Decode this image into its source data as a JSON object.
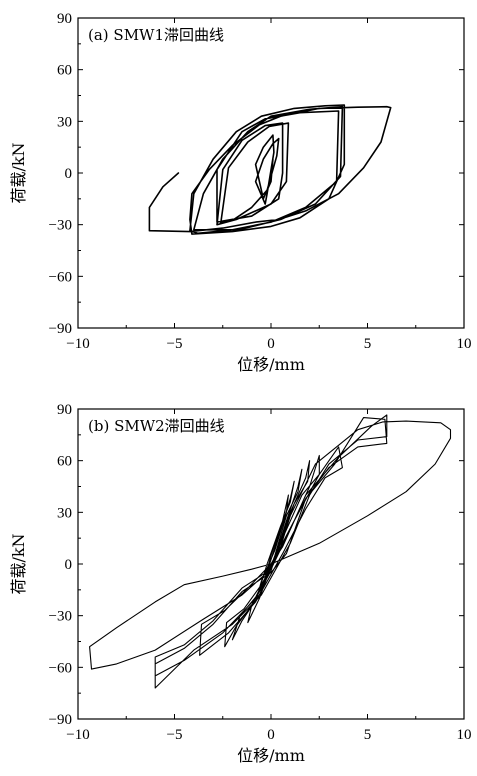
{
  "chart_data": [
    {
      "type": "line",
      "title": "(a) SMW1滞回曲线",
      "xlabel": "位移/mm",
      "ylabel": "荷载/kN",
      "xlim": [
        -10,
        10
      ],
      "ylim": [
        -90,
        90
      ],
      "xticks": [
        -10,
        -5,
        0,
        5,
        10
      ],
      "yticks": [
        -90,
        -60,
        -30,
        0,
        30,
        60,
        90
      ],
      "grid": false,
      "stroke_width": 1.6,
      "series": [
        {
          "points": [
            [
              -4.8,
              0
            ],
            [
              -5.6,
              -8
            ],
            [
              -6.3,
              -20
            ],
            [
              -6.3,
              -33.5
            ],
            [
              -4.2,
              -34
            ],
            [
              -2.5,
              -32
            ],
            [
              -0.8,
              -28.5
            ],
            [
              0.4,
              -27
            ],
            [
              1.8,
              -22
            ],
            [
              3.5,
              -12
            ],
            [
              4.8,
              3
            ],
            [
              5.7,
              18
            ],
            [
              6.2,
              38
            ],
            [
              6.0,
              38.5
            ],
            [
              4.5,
              38.2
            ],
            [
              2.5,
              37.5
            ],
            [
              0.5,
              33
            ],
            [
              -0.6,
              28
            ],
            [
              -2.0,
              16
            ],
            [
              -3.2,
              2
            ],
            [
              -4.1,
              -12
            ],
            [
              -4.2,
              -27
            ],
            [
              -4.1,
              -35.5
            ],
            [
              -2.0,
              -34
            ],
            [
              0,
              -31
            ],
            [
              1.5,
              -26
            ],
            [
              3.0,
              -15
            ],
            [
              3.8,
              5
            ],
            [
              3.8,
              39.5
            ],
            [
              2.8,
              39
            ],
            [
              1.2,
              37.5
            ],
            [
              -0.5,
              33
            ],
            [
              -1.8,
              24
            ],
            [
              -3.0,
              8
            ],
            [
              -4.0,
              -12
            ],
            [
              -4.2,
              -33.5
            ],
            [
              -3.8,
              -35
            ],
            [
              -1.5,
              -32.5
            ],
            [
              0.5,
              -27
            ],
            [
              2.3,
              -18
            ],
            [
              3.6,
              -2
            ],
            [
              3.7,
              38.5
            ],
            [
              2.0,
              37
            ],
            [
              0,
              33
            ],
            [
              -1.2,
              24
            ],
            [
              -2.5,
              8
            ],
            [
              -3.5,
              -12
            ],
            [
              -4.0,
              -33
            ],
            [
              -2.0,
              -33
            ],
            [
              0,
              -28.5
            ],
            [
              1.8,
              -20
            ],
            [
              3.4,
              -5
            ],
            [
              3.5,
              36
            ],
            [
              1.5,
              35
            ],
            [
              -0.3,
              31.5
            ],
            [
              -1.5,
              24
            ],
            [
              -2.8,
              2
            ],
            [
              -2.8,
              -28.5
            ],
            [
              -1.0,
              -25
            ],
            [
              0.4,
              -15
            ],
            [
              0.6,
              0
            ],
            [
              0.6,
              29
            ],
            [
              -0.3,
              27.5
            ],
            [
              -1.5,
              19
            ],
            [
              -2.5,
              2
            ],
            [
              -2.8,
              -30
            ],
            [
              -1.8,
              -27
            ],
            [
              0,
              -18
            ],
            [
              0.8,
              -5
            ],
            [
              0.9,
              29
            ],
            [
              -0.1,
              27
            ],
            [
              -1.2,
              18
            ],
            [
              -2.2,
              3
            ],
            [
              -2.6,
              -29
            ],
            [
              -2.0,
              -27.5
            ],
            [
              -1.0,
              -20
            ],
            [
              -0.2,
              -10
            ],
            [
              0.3,
              10
            ],
            [
              0.4,
              20
            ],
            [
              0.1,
              17
            ],
            [
              -0.4,
              8
            ],
            [
              -0.8,
              -5
            ],
            [
              -0.3,
              -18
            ],
            [
              -0.2,
              -12
            ],
            [
              0.15,
              12
            ],
            [
              0.1,
              22
            ],
            [
              -0.4,
              15
            ],
            [
              -0.8,
              5
            ],
            [
              -0.4,
              -15
            ],
            [
              0,
              -5
            ],
            [
              0.1,
              8
            ]
          ]
        }
      ]
    },
    {
      "type": "line",
      "title": "(b) SMW2滞回曲线",
      "xlabel": "位移/mm",
      "ylabel": "荷载/kN",
      "xlim": [
        -10,
        10
      ],
      "ylim": [
        -90,
        90
      ],
      "xticks": [
        -10,
        -5,
        0,
        5,
        10
      ],
      "yticks": [
        -90,
        -60,
        -30,
        0,
        30,
        60,
        90
      ],
      "grid": false,
      "stroke_width": 1.1,
      "series": [
        {
          "points": [
            [
              0,
              0
            ],
            [
              2.5,
              12
            ],
            [
              5.0,
              28
            ],
            [
              7.0,
              42
            ],
            [
              8.5,
              58
            ],
            [
              9.3,
              73
            ],
            [
              9.3,
              78
            ],
            [
              8.8,
              82
            ],
            [
              7.0,
              83
            ],
            [
              5.8,
              82.5
            ],
            [
              4.5,
              78
            ],
            [
              2.3,
              58
            ],
            [
              1.0,
              28
            ],
            [
              0.5,
              10
            ],
            [
              -0.2,
              -5
            ],
            [
              -1.5,
              -18
            ],
            [
              -3.5,
              -32
            ],
            [
              -6.0,
              -50
            ],
            [
              -8.0,
              -58
            ],
            [
              -9.3,
              -61
            ],
            [
              -9.4,
              -48
            ],
            [
              -8.0,
              -37
            ],
            [
              -6.0,
              -22
            ],
            [
              -4.5,
              -12
            ],
            [
              -2.5,
              -7
            ],
            [
              -1.0,
              -3
            ],
            [
              0,
              0
            ],
            [
              0.6,
              10
            ],
            [
              1.8,
              40
            ],
            [
              3.5,
              62
            ],
            [
              5.2,
              80
            ],
            [
              6.0,
              86.5
            ],
            [
              6.0,
              74
            ],
            [
              4.5,
              72
            ],
            [
              3.0,
              58
            ],
            [
              2.0,
              40
            ],
            [
              1.0,
              12
            ],
            [
              -0.5,
              -18
            ],
            [
              -2.0,
              -35
            ],
            [
              -4.0,
              -50
            ],
            [
              -6.0,
              -72
            ],
            [
              -6.0,
              -58
            ],
            [
              -4.5,
              -49
            ],
            [
              -3.0,
              -35
            ],
            [
              -1.5,
              -16
            ],
            [
              0,
              -5
            ],
            [
              0.8,
              6
            ],
            [
              1.8,
              38
            ],
            [
              3.3,
              58
            ],
            [
              4.8,
              85
            ],
            [
              5.9,
              84
            ],
            [
              6.0,
              70
            ],
            [
              4.5,
              68
            ],
            [
              3.0,
              56
            ],
            [
              1.8,
              38
            ],
            [
              0.5,
              10
            ],
            [
              -0.8,
              -20
            ],
            [
              -2.5,
              -40
            ],
            [
              -4.5,
              -56
            ],
            [
              -6.0,
              -65
            ],
            [
              -6.0,
              -54
            ],
            [
              -4.5,
              -47
            ],
            [
              -3.0,
              -33
            ],
            [
              -1.5,
              -14
            ],
            [
              0,
              -3
            ],
            [
              1.2,
              25
            ],
            [
              2.5,
              52
            ],
            [
              3.5,
              68
            ],
            [
              3.7,
              56
            ],
            [
              2.8,
              50
            ],
            [
              1.8,
              32
            ],
            [
              0.6,
              6
            ],
            [
              -0.8,
              -22
            ],
            [
              -2.2,
              -40
            ],
            [
              -3.7,
              -53
            ],
            [
              -3.6,
              -35
            ],
            [
              -2.4,
              -27
            ],
            [
              -1.2,
              -14
            ],
            [
              0,
              0
            ],
            [
              1.0,
              20
            ],
            [
              2.0,
              45
            ],
            [
              2.5,
              63
            ],
            [
              2.5,
              52
            ],
            [
              1.6,
              40
            ],
            [
              0.6,
              15
            ],
            [
              -0.6,
              -18
            ],
            [
              -1.8,
              -36
            ],
            [
              -2.4,
              -48
            ],
            [
              -2.3,
              -34
            ],
            [
              -1.4,
              -26
            ],
            [
              -0.5,
              -12
            ],
            [
              0.2,
              2
            ],
            [
              1.0,
              30
            ],
            [
              1.8,
              50
            ],
            [
              2.0,
              60
            ],
            [
              1.9,
              48
            ],
            [
              1.2,
              35
            ],
            [
              0.5,
              12
            ],
            [
              -0.5,
              -16
            ],
            [
              -1.5,
              -33
            ],
            [
              -2.0,
              -44
            ],
            [
              -1.6,
              -30
            ],
            [
              -0.7,
              -18
            ],
            [
              0,
              -4
            ],
            [
              0.8,
              25
            ],
            [
              1.4,
              45
            ],
            [
              1.6,
              55
            ],
            [
              1.4,
              42
            ],
            [
              0.8,
              28
            ],
            [
              0.2,
              5
            ],
            [
              -0.6,
              -20
            ],
            [
              -1.2,
              -34
            ],
            [
              -1.0,
              -24
            ],
            [
              -0.3,
              -8
            ],
            [
              0.5,
              20
            ],
            [
              1.0,
              38
            ],
            [
              1.2,
              48
            ],
            [
              1.0,
              36
            ],
            [
              0.5,
              22
            ],
            [
              -0.2,
              0
            ],
            [
              -0.8,
              -22
            ],
            [
              -0.5,
              -10
            ],
            [
              0.2,
              8
            ],
            [
              0.8,
              30
            ],
            [
              0.9,
              40
            ],
            [
              0.6,
              25
            ],
            [
              0,
              5
            ],
            [
              -0.4,
              -12
            ],
            [
              0,
              0
            ]
          ]
        }
      ]
    }
  ]
}
